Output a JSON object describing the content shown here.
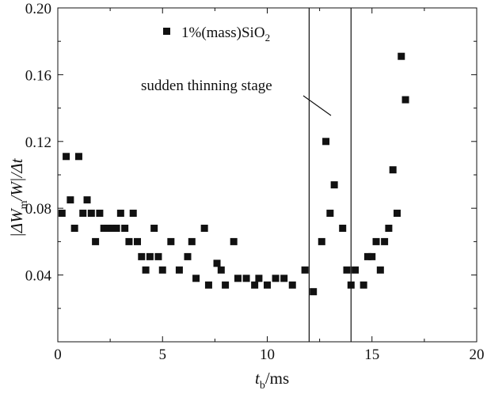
{
  "chart_data": {
    "type": "scatter",
    "xlim": [
      0,
      20
    ],
    "ylim": [
      0,
      0.2
    ],
    "x_ticks": [
      "0",
      "5",
      "10",
      "15",
      "20"
    ],
    "y_ticks": [
      "0.04",
      "0.08",
      "0.12",
      "0.16",
      "0.20"
    ],
    "xlabel": {
      "main": "t",
      "sub": "b",
      "rest": "/ms"
    },
    "ylabel": {
      "p1": "|ΔW",
      "sub": "m",
      "p2": "/W|/Δt"
    },
    "legend": {
      "text": "1%(mass)SiO",
      "sub": "2",
      "position": "top-left"
    },
    "annotation": "sudden thinning stage",
    "vertical_lines": [
      12.0,
      14.0
    ],
    "marker_color": "#111111",
    "series": [
      {
        "name": "1%(mass)SiO2",
        "points": [
          [
            0.2,
            0.077
          ],
          [
            0.4,
            0.111
          ],
          [
            0.6,
            0.085
          ],
          [
            0.8,
            0.068
          ],
          [
            1.0,
            0.111
          ],
          [
            1.2,
            0.077
          ],
          [
            1.4,
            0.085
          ],
          [
            1.6,
            0.077
          ],
          [
            1.8,
            0.06
          ],
          [
            2.0,
            0.077
          ],
          [
            2.2,
            0.068
          ],
          [
            2.4,
            0.068
          ],
          [
            2.6,
            0.068
          ],
          [
            2.8,
            0.068
          ],
          [
            3.0,
            0.077
          ],
          [
            3.2,
            0.068
          ],
          [
            3.4,
            0.06
          ],
          [
            3.6,
            0.077
          ],
          [
            3.8,
            0.06
          ],
          [
            4.0,
            0.051
          ],
          [
            4.2,
            0.043
          ],
          [
            4.4,
            0.051
          ],
          [
            4.6,
            0.068
          ],
          [
            4.8,
            0.051
          ],
          [
            5.0,
            0.043
          ],
          [
            5.4,
            0.06
          ],
          [
            5.8,
            0.043
          ],
          [
            6.2,
            0.051
          ],
          [
            6.4,
            0.06
          ],
          [
            6.6,
            0.038
          ],
          [
            7.0,
            0.068
          ],
          [
            7.2,
            0.034
          ],
          [
            7.6,
            0.047
          ],
          [
            7.8,
            0.043
          ],
          [
            8.0,
            0.034
          ],
          [
            8.4,
            0.06
          ],
          [
            8.6,
            0.038
          ],
          [
            9.0,
            0.038
          ],
          [
            9.4,
            0.034
          ],
          [
            9.6,
            0.038
          ],
          [
            10.0,
            0.034
          ],
          [
            10.4,
            0.038
          ],
          [
            10.8,
            0.038
          ],
          [
            11.2,
            0.034
          ],
          [
            11.8,
            0.043
          ],
          [
            12.2,
            0.03
          ],
          [
            12.6,
            0.06
          ],
          [
            12.8,
            0.12
          ],
          [
            13.0,
            0.077
          ],
          [
            13.2,
            0.094
          ],
          [
            13.6,
            0.068
          ],
          [
            13.8,
            0.043
          ],
          [
            14.0,
            0.034
          ],
          [
            14.2,
            0.043
          ],
          [
            14.6,
            0.034
          ],
          [
            14.8,
            0.051
          ],
          [
            15.0,
            0.051
          ],
          [
            15.2,
            0.06
          ],
          [
            15.4,
            0.043
          ],
          [
            15.6,
            0.06
          ],
          [
            15.8,
            0.068
          ],
          [
            16.0,
            0.103
          ],
          [
            16.2,
            0.077
          ],
          [
            16.4,
            0.171
          ],
          [
            16.6,
            0.145
          ]
        ]
      }
    ]
  }
}
